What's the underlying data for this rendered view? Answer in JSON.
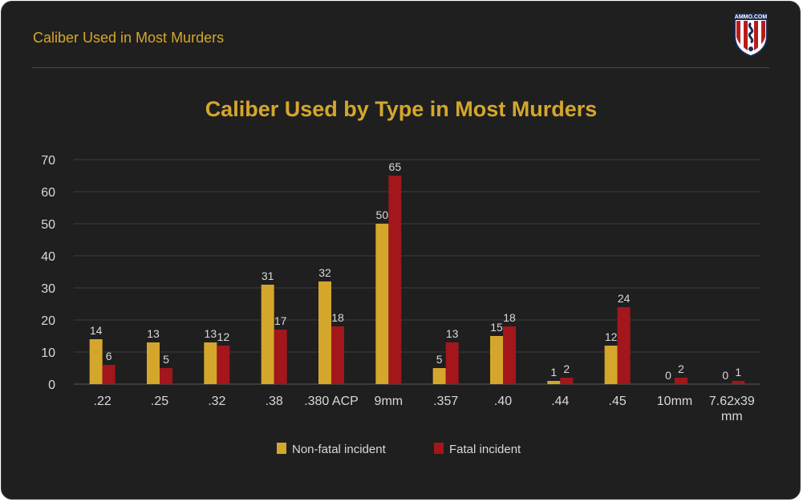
{
  "header": {
    "title": "Caliber Used in Most Murders"
  },
  "logo": {
    "text": "AMMO.COM",
    "icon": "ammo-com-shield-logo"
  },
  "colors": {
    "background": "#1f1f1f",
    "accent": "#d4a72c",
    "non_fatal": "#d4a72c",
    "fatal": "#a3161c",
    "grid": "#3c3c3c",
    "text": "#d9d9d9"
  },
  "chart_data": {
    "type": "bar",
    "title": "Caliber Used by Type in Most Murders",
    "xlabel": "",
    "ylabel": "",
    "ylim": [
      0,
      70
    ],
    "yticks": [
      0,
      10,
      20,
      30,
      40,
      50,
      60,
      70
    ],
    "grid": true,
    "legend_position": "bottom",
    "categories": [
      ".22",
      ".25",
      ".32",
      ".38",
      ".380 ACP",
      "9mm",
      ".357",
      ".40",
      ".44",
      ".45",
      "10mm",
      "7.62x39 mm"
    ],
    "series": [
      {
        "name": "Non-fatal incident",
        "color": "#d4a72c",
        "values": [
          14,
          13,
          13,
          31,
          32,
          50,
          5,
          15,
          1,
          12,
          0,
          0
        ]
      },
      {
        "name": "Fatal incident",
        "color": "#a3161c",
        "values": [
          6,
          5,
          12,
          17,
          18,
          65,
          13,
          18,
          2,
          24,
          2,
          1
        ]
      }
    ]
  }
}
